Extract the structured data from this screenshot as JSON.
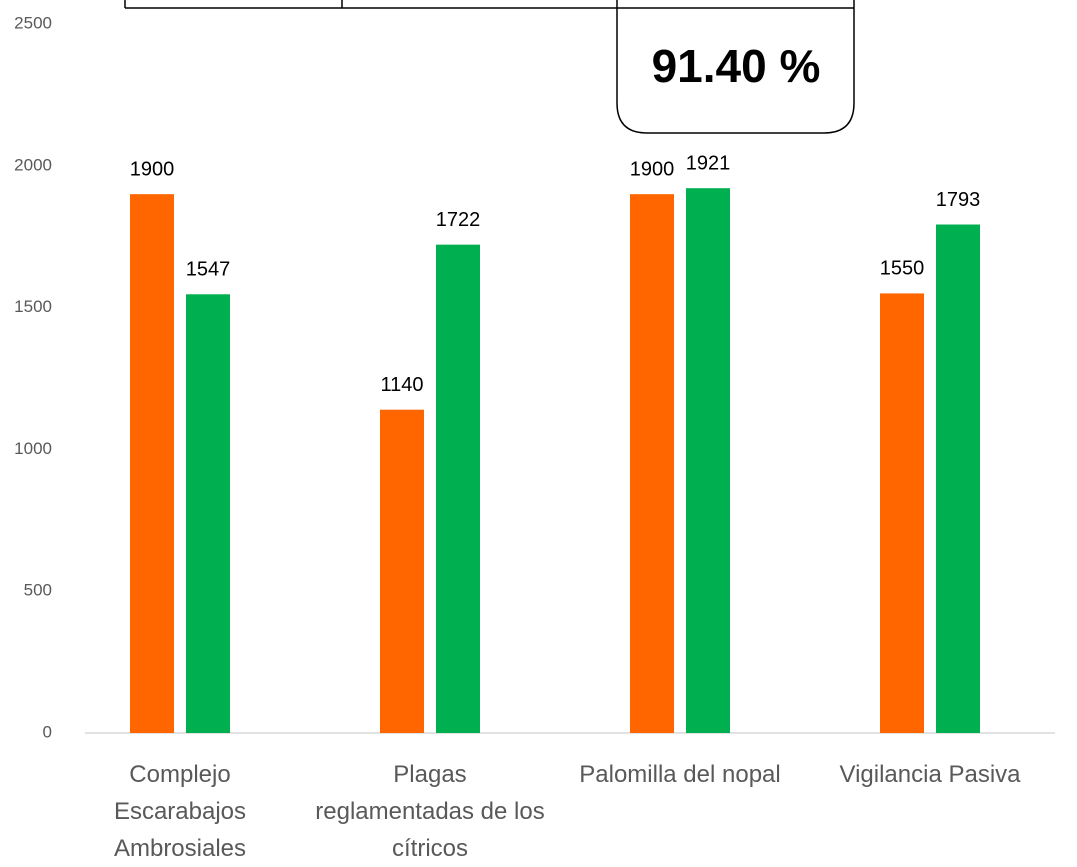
{
  "chart_data": {
    "type": "bar",
    "annotation": "91.40 %",
    "categories": [
      "Complejo Escarabajos Ambrosiales",
      "Plagas reglamentadas de los cítricos",
      "Palomilla del nopal",
      "Vigilancia Pasiva"
    ],
    "series": [
      {
        "color": "#FF6600",
        "values": [
          1900,
          1140,
          1900,
          1550
        ]
      },
      {
        "color": "#00B050",
        "values": [
          1547,
          1722,
          1921,
          1793
        ]
      }
    ],
    "ylim": [
      0,
      2500
    ],
    "yticks": [
      0,
      500,
      1000,
      1500,
      2000,
      2500
    ],
    "grid": false
  }
}
